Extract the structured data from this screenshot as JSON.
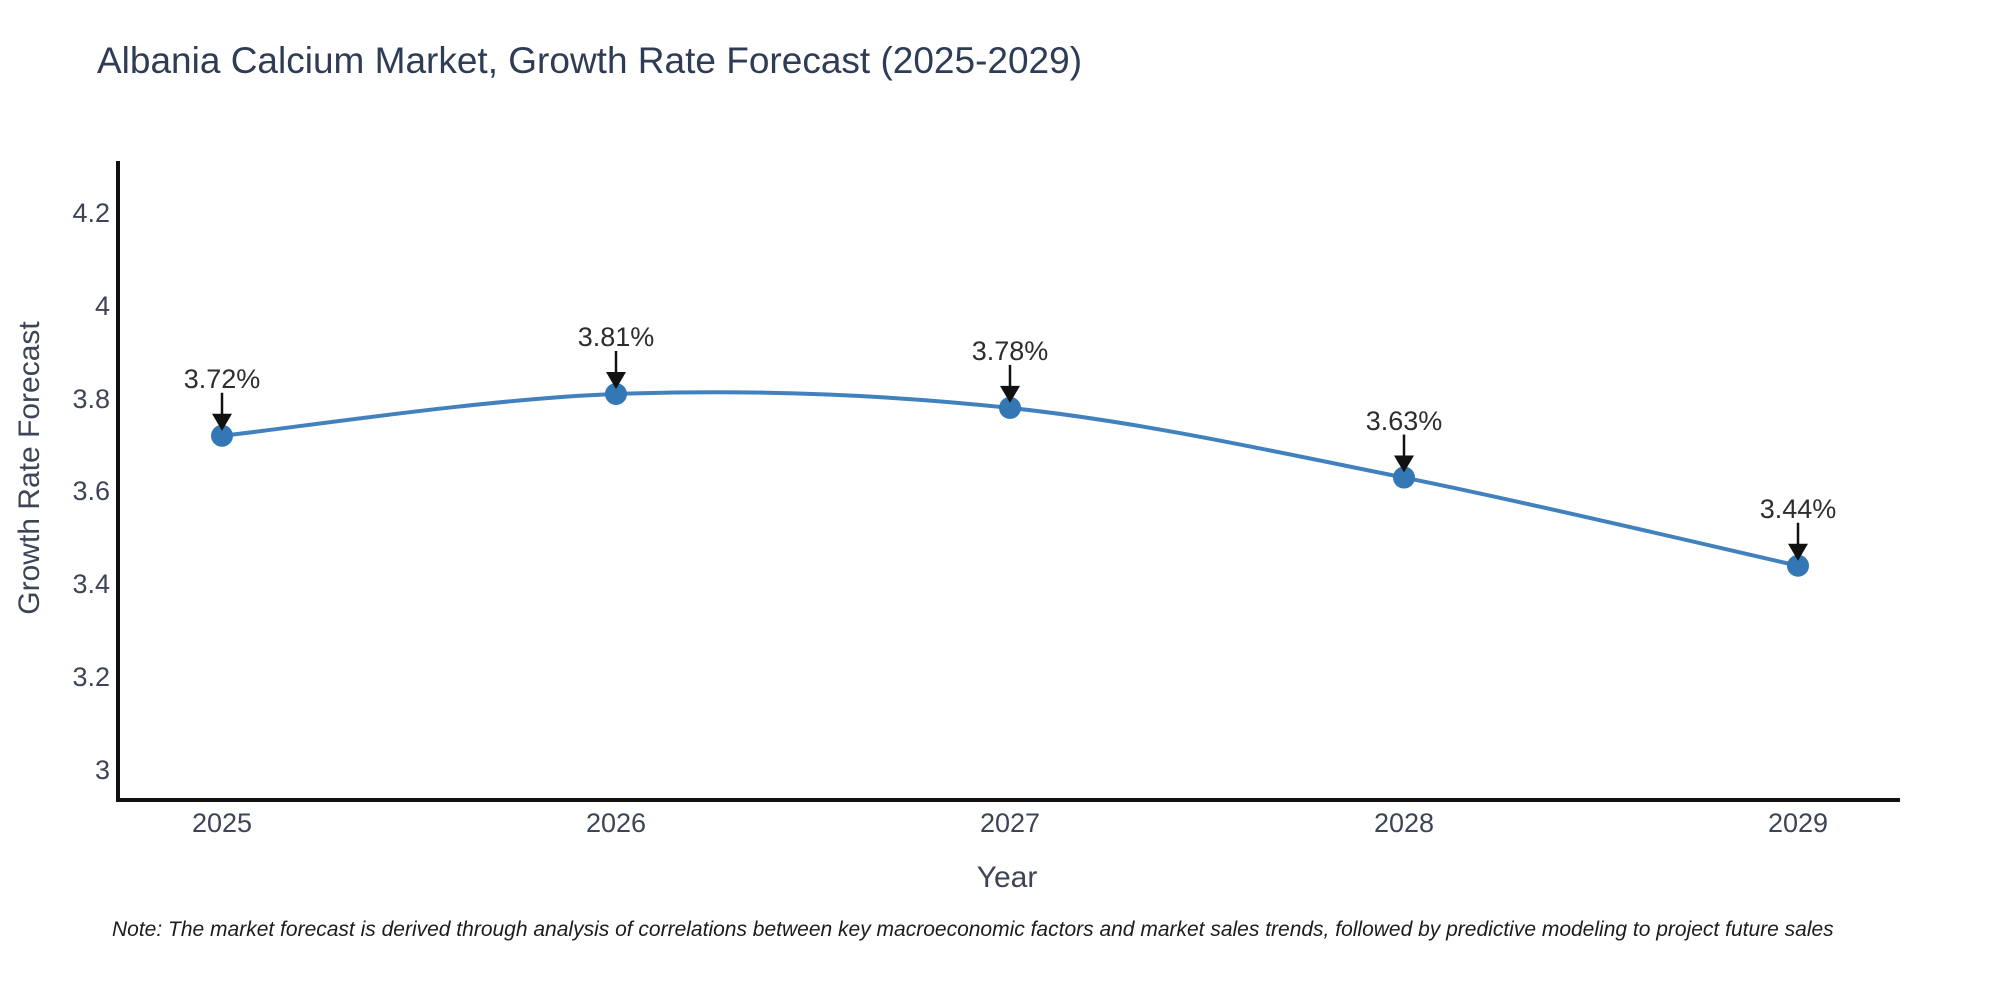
{
  "title": "Albania Calcium Market, Growth Rate Forecast (2025-2029)",
  "note": "Note: The market forecast is derived through analysis of correlations between key macroeconomic factors and market sales trends, followed by predictive modeling to project future sales",
  "chart_data": {
    "type": "line",
    "title": "Albania Calcium Market, Growth Rate Forecast (2025-2029)",
    "xlabel": "Year",
    "ylabel": "Growth Rate Forecast",
    "x": [
      2025,
      2026,
      2027,
      2028,
      2029
    ],
    "series": [
      {
        "name": "Growth Rate Forecast",
        "values": [
          3.72,
          3.81,
          3.78,
          3.63,
          3.44
        ]
      }
    ],
    "point_labels": [
      "3.72%",
      "3.81%",
      "3.78%",
      "3.63%",
      "3.44%"
    ],
    "yticks": [
      3,
      3.2,
      3.4,
      3.6,
      3.8,
      4,
      4.2
    ],
    "ytick_labels": [
      "3",
      "3.2",
      "3.4",
      "3.6",
      "3.8",
      "4",
      "4.2"
    ],
    "ylim": [
      2.93,
      4.31
    ],
    "line_shape": "spline",
    "grid": false,
    "legend": false,
    "annotations": "value labels with down arrows above each point",
    "colors": {
      "line": "#4181bd",
      "marker": "#3377b5",
      "axis": "#111111",
      "arrow": "#111111",
      "tick_text": "#3d4456",
      "title_text": "#2e3c56",
      "annotation_text": "#2d2d2d"
    }
  }
}
